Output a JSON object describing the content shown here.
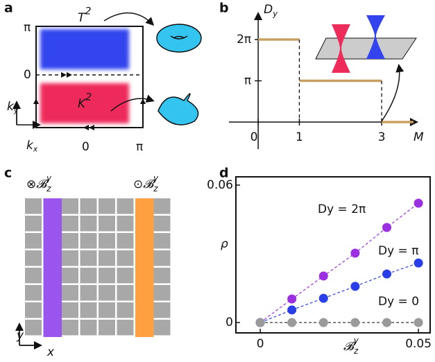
{
  "panel_labels": [
    "a",
    "b",
    "c",
    "d"
  ],
  "panel_a": {
    "top_label": {
      "base": "T",
      "sup": "2"
    },
    "region_label": {
      "base": "K",
      "sup": "2"
    },
    "y_ticks": [
      "π",
      "0"
    ],
    "x_ticks": [
      "0",
      "π"
    ],
    "y_axis": {
      "base": "k",
      "sub": "y"
    },
    "x_axis": {
      "base": "k",
      "sub": "x"
    }
  },
  "panel_c": {
    "left_label": {
      "prefix": "⊗",
      "base": "𝓑",
      "sub": "z",
      "sup": "y"
    },
    "right_label": {
      "prefix": "⊙",
      "base": "𝓑",
      "sub": "z",
      "sup": "y"
    },
    "y_axis": "y",
    "x_axis": "x"
  },
  "chart_data": [
    {
      "type": "step",
      "ylabel": {
        "base": "D",
        "sub": "y"
      },
      "xlabel": "M",
      "x_starts": [
        0,
        1,
        3
      ],
      "values": [
        6.2832,
        3.1416,
        0
      ],
      "color": "#c8a062",
      "xlim": [
        -0.71,
        3.84
      ],
      "ylim": [
        -2.06,
        8.24
      ],
      "xticks": [
        0,
        1,
        3
      ],
      "yticks": [
        {
          "value": 3.1416,
          "label": "π"
        },
        {
          "value": 6.2832,
          "label": "2π"
        }
      ]
    },
    {
      "type": "scatter-line",
      "xlabel": {
        "base": "𝓑",
        "sub": "z",
        "sup": "y"
      },
      "ylabel": "ρ",
      "x": [
        0,
        0.01,
        0.02,
        0.03,
        0.04,
        0.05
      ],
      "series": [
        {
          "name": "Dy = 2π",
          "color": "#9b30e0",
          "values": [
            0,
            0.0103,
            0.0203,
            0.0303,
            0.0415,
            0.0521
          ]
        },
        {
          "name": "Dy = π",
          "color": "#2a3ee8",
          "values": [
            0,
            0.0055,
            0.0106,
            0.0158,
            0.0212,
            0.026
          ]
        },
        {
          "name": "Dy = 0",
          "color": "#9a9a9a",
          "values": [
            0,
            0,
            0,
            0,
            0,
            0
          ]
        }
      ],
      "xlim": [
        -0.0077,
        0.0537
      ],
      "ylim": [
        -0.0045,
        0.0636
      ],
      "xticks": [
        0,
        0.05
      ],
      "yticks": [
        0,
        0.06
      ]
    }
  ]
}
